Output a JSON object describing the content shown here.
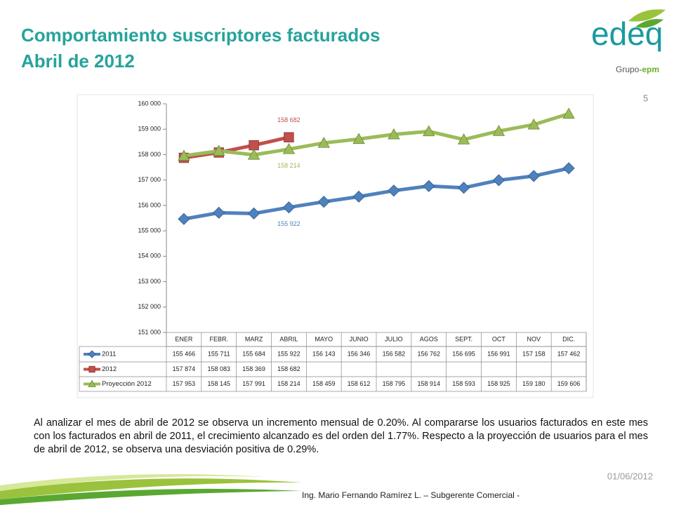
{
  "header": {
    "title_line1": "Comportamiento suscriptores facturados",
    "title_line2": "Abril de 2012",
    "page_number": "5"
  },
  "logo": {
    "name": "edeq",
    "group": "Grupo-",
    "group_brand": "epm"
  },
  "chart_data": {
    "type": "line",
    "categories": [
      "ENER",
      "FEBR.",
      "MARZ",
      "ABRIL",
      "MAYO",
      "JUNIO",
      "JULIO",
      "AGOS",
      "SEPT.",
      "OCT",
      "NOV",
      "DIC."
    ],
    "ylim": [
      151000,
      160000
    ],
    "yticks": [
      {
        "value": 151000,
        "label": "151 000"
      },
      {
        "value": 152000,
        "label": "152 000"
      },
      {
        "value": 153000,
        "label": "153 000"
      },
      {
        "value": 154000,
        "label": "154 000"
      },
      {
        "value": 155000,
        "label": "155 000"
      },
      {
        "value": 156000,
        "label": "156 000"
      },
      {
        "value": 157000,
        "label": "157 000"
      },
      {
        "value": 158000,
        "label": "158 000"
      },
      {
        "value": 159000,
        "label": "159 000"
      },
      {
        "value": 160000,
        "label": "160 000"
      }
    ],
    "series": [
      {
        "name": "2011",
        "color": "#4f81bd",
        "marker": "diamond",
        "values": [
          155466,
          155711,
          155684,
          155922,
          156143,
          156346,
          156582,
          156762,
          156695,
          156991,
          157158,
          157462
        ],
        "value_labels": [
          "155 466",
          "155 711",
          "155 684",
          "155 922",
          "156 143",
          "156 346",
          "156 582",
          "156 762",
          "156 695",
          "156 991",
          "157 158",
          "157 462"
        ]
      },
      {
        "name": "2012",
        "color": "#c0504d",
        "marker": "square",
        "values": [
          157874,
          158083,
          158369,
          158682,
          null,
          null,
          null,
          null,
          null,
          null,
          null,
          null
        ],
        "value_labels": [
          "157 874",
          "158 083",
          "158 369",
          "158 682",
          null,
          null,
          null,
          null,
          null,
          null,
          null,
          null
        ]
      },
      {
        "name": "Proyección 2012",
        "color": "#9bbb59",
        "marker": "triangle",
        "values": [
          157953,
          158145,
          157991,
          158214,
          158459,
          158612,
          158795,
          158914,
          158593,
          158925,
          159180,
          159606
        ],
        "value_labels": [
          "157 953",
          "158 145",
          "157 991",
          "158 214",
          "158 459",
          "158 612",
          "158 795",
          "158 914",
          "158 593",
          "158 925",
          "159 180",
          "159 606"
        ]
      }
    ],
    "point_labels": [
      {
        "series": 1,
        "index": 3,
        "position": "above"
      },
      {
        "series": 2,
        "index": 3,
        "position": "below"
      },
      {
        "series": 0,
        "index": 3,
        "position": "below"
      }
    ]
  },
  "body": {
    "paragraph": "Al analizar el mes de abril de 2012 se observa un incremento mensual de 0.20%. Al compararse  los usuarios facturados en este mes con los  facturados en abril de 2011, el crecimiento alcanzado es del orden del 1.77%. Respecto a la proyección de usuarios para el mes de abril de 2012, se observa una desviación positiva de  0.29%."
  },
  "footer": {
    "date": "01/06/2012",
    "author": "Ing. Mario Fernando Ramírez L. – Subgerente Comercial -"
  }
}
